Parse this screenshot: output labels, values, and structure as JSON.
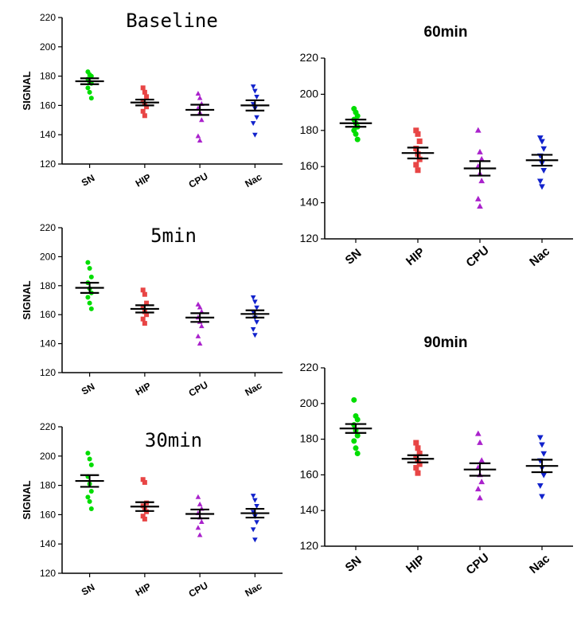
{
  "chart_data": [
    {
      "type": "scatter",
      "title": "Baseline",
      "ylabel": "SIGNAL",
      "xlabel": "",
      "ylim": [
        120,
        220
      ],
      "yticks": [
        120,
        140,
        160,
        180,
        200,
        220
      ],
      "categories": [
        "SN",
        "HIP",
        "CPU",
        "Nac"
      ],
      "series": [
        {
          "name": "SN",
          "color": "#00dd00",
          "marker": "circle",
          "values": [
            183,
            181,
            180,
            178,
            176,
            175,
            172,
            169,
            165
          ],
          "mean": 176.5,
          "sem": 2
        },
        {
          "name": "HIP",
          "color": "#e84545",
          "marker": "square",
          "values": [
            172,
            169,
            166,
            163,
            161,
            159,
            156,
            153
          ],
          "mean": 162,
          "sem": 2
        },
        {
          "name": "CPU",
          "color": "#aa22cc",
          "marker": "triangle-up",
          "values": [
            168,
            165,
            161,
            158,
            155,
            150,
            139,
            136
          ],
          "mean": 157,
          "sem": 3.5
        },
        {
          "name": "Nac",
          "color": "#1122cc",
          "marker": "triangle-down",
          "values": [
            173,
            170,
            166,
            161,
            158,
            152,
            148,
            140
          ],
          "mean": 160,
          "sem": 3.5
        }
      ]
    },
    {
      "type": "scatter",
      "title": "5min",
      "ylabel": "SIGNAL",
      "xlabel": "",
      "ylim": [
        120,
        220
      ],
      "yticks": [
        120,
        140,
        160,
        180,
        200,
        220
      ],
      "categories": [
        "SN",
        "HIP",
        "CPU",
        "Nac"
      ],
      "series": [
        {
          "name": "SN",
          "color": "#00dd00",
          "marker": "circle",
          "values": [
            196,
            192,
            186,
            182,
            178,
            175,
            172,
            168,
            164
          ],
          "mean": 178.5,
          "sem": 3.5
        },
        {
          "name": "HIP",
          "color": "#e84545",
          "marker": "square",
          "values": [
            177,
            174,
            168,
            165,
            162,
            160,
            157,
            154
          ],
          "mean": 164,
          "sem": 2.5
        },
        {
          "name": "CPU",
          "color": "#aa22cc",
          "marker": "triangle-up",
          "values": [
            167,
            165,
            162,
            158,
            155,
            152,
            145,
            140
          ],
          "mean": 158,
          "sem": 3
        },
        {
          "name": "Nac",
          "color": "#1122cc",
          "marker": "triangle-down",
          "values": [
            172,
            169,
            165,
            162,
            158,
            155,
            150,
            146
          ],
          "mean": 160.5,
          "sem": 2.5
        }
      ]
    },
    {
      "type": "scatter",
      "title": "30min",
      "ylabel": "SIGNAL",
      "xlabel": "",
      "ylim": [
        120,
        220
      ],
      "yticks": [
        120,
        140,
        160,
        180,
        200,
        220
      ],
      "categories": [
        "SN",
        "HIP",
        "CPU",
        "Nac"
      ],
      "series": [
        {
          "name": "SN",
          "color": "#00dd00",
          "marker": "circle",
          "values": [
            202,
            198,
            194,
            186,
            181,
            176,
            172,
            169,
            164
          ],
          "mean": 183,
          "sem": 4
        },
        {
          "name": "HIP",
          "color": "#e84545",
          "marker": "square",
          "values": [
            184,
            182,
            168,
            166,
            164,
            162,
            159,
            157
          ],
          "mean": 165.5,
          "sem": 3
        },
        {
          "name": "CPU",
          "color": "#aa22cc",
          "marker": "triangle-up",
          "values": [
            172,
            167,
            164,
            161,
            158,
            155,
            151,
            146
          ],
          "mean": 160.5,
          "sem": 3
        },
        {
          "name": "Nac",
          "color": "#1122cc",
          "marker": "triangle-down",
          "values": [
            173,
            170,
            166,
            162,
            159,
            155,
            150,
            143
          ],
          "mean": 161,
          "sem": 3
        }
      ]
    },
    {
      "type": "scatter",
      "title": "60min",
      "ylabel": "",
      "xlabel": "",
      "ylim": [
        120,
        220
      ],
      "yticks": [
        120,
        140,
        160,
        180,
        200,
        220
      ],
      "categories": [
        "SN",
        "HIP",
        "CPU",
        "Nac"
      ],
      "series": [
        {
          "name": "SN",
          "color": "#00dd00",
          "marker": "circle",
          "values": [
            192,
            190,
            188,
            186,
            184,
            182,
            180,
            178,
            175
          ],
          "mean": 184,
          "sem": 2
        },
        {
          "name": "HIP",
          "color": "#e84545",
          "marker": "square",
          "values": [
            180,
            178,
            174,
            170,
            167,
            164,
            161,
            158
          ],
          "mean": 167.5,
          "sem": 3
        },
        {
          "name": "CPU",
          "color": "#aa22cc",
          "marker": "triangle-up",
          "values": [
            180,
            168,
            164,
            160,
            156,
            152,
            142,
            138
          ],
          "mean": 159,
          "sem": 4
        },
        {
          "name": "Nac",
          "color": "#1122cc",
          "marker": "triangle-down",
          "values": [
            176,
            174,
            170,
            166,
            162,
            158,
            152,
            149
          ],
          "mean": 163.5,
          "sem": 3
        }
      ]
    },
    {
      "type": "scatter",
      "title": "90min",
      "ylabel": "",
      "xlabel": "",
      "ylim": [
        120,
        220
      ],
      "yticks": [
        120,
        140,
        160,
        180,
        200,
        220
      ],
      "categories": [
        "SN",
        "HIP",
        "CPU",
        "Nac"
      ],
      "series": [
        {
          "name": "SN",
          "color": "#00dd00",
          "marker": "circle",
          "values": [
            202,
            193,
            191,
            188,
            185,
            182,
            179,
            175,
            172
          ],
          "mean": 186,
          "sem": 2.5
        },
        {
          "name": "HIP",
          "color": "#e84545",
          "marker": "square",
          "values": [
            178,
            175,
            172,
            170,
            168,
            166,
            164,
            161
          ],
          "mean": 169,
          "sem": 2
        },
        {
          "name": "CPU",
          "color": "#aa22cc",
          "marker": "triangle-up",
          "values": [
            183,
            178,
            168,
            164,
            160,
            156,
            152,
            147
          ],
          "mean": 163,
          "sem": 3.5
        },
        {
          "name": "Nac",
          "color": "#1122cc",
          "marker": "triangle-down",
          "values": [
            181,
            177,
            172,
            168,
            164,
            160,
            154,
            148
          ],
          "mean": 165,
          "sem": 3.5
        }
      ]
    }
  ]
}
